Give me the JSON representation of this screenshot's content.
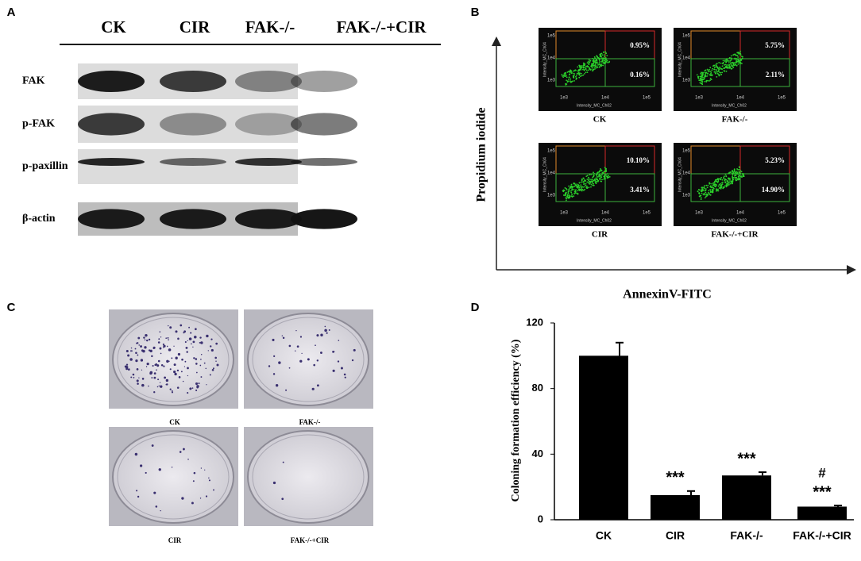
{
  "panel_a": {
    "label": "A",
    "columns": [
      "CK",
      "CIR",
      "FAK-/-",
      "FAK-/-+CIR"
    ],
    "rows": [
      "FAK",
      "p-FAK",
      "p-paxillin",
      "β-actin"
    ]
  },
  "panel_b": {
    "label": "B",
    "y_label": "Propidium iodide",
    "x_label": "AnnexinV-FITC",
    "plot_y_label": "Intensity_MC_Ch04",
    "plot_x_label": "Intensity_MC_Ch02",
    "plot_ticks": [
      "1e3",
      "1e4",
      "1e5"
    ],
    "plots": [
      {
        "name": "CK",
        "upper": "0.95%",
        "lower": "0.16%"
      },
      {
        "name": "FAK-/-",
        "upper": "5.75%",
        "lower": "2.11%"
      },
      {
        "name": "CIR",
        "upper": "10.10%",
        "lower": "3.41%"
      },
      {
        "name": "FAK-/-+CIR",
        "upper": "5.23%",
        "lower": "14.90%"
      }
    ]
  },
  "panel_c": {
    "label": "C",
    "plates": [
      "CK",
      "FAK-/-",
      "CIR",
      "FAK-/-+CIR"
    ]
  },
  "chart_data": {
    "type": "bar",
    "panel_label": "D",
    "y_label": "Coloning formation efficiency (%)",
    "categories": [
      "CK",
      "CIR",
      "FAK-/-",
      "FAK-/-+CIR"
    ],
    "values": [
      100,
      15,
      27,
      8
    ],
    "errors": [
      8,
      2.5,
      2,
      0.7
    ],
    "significance": [
      null,
      "***",
      "***",
      "***"
    ],
    "significance_vs_cir": [
      null,
      null,
      null,
      "#"
    ],
    "color": "#000000",
    "ylim": [
      0,
      120
    ],
    "yticks": [
      0,
      40,
      80,
      120
    ]
  }
}
